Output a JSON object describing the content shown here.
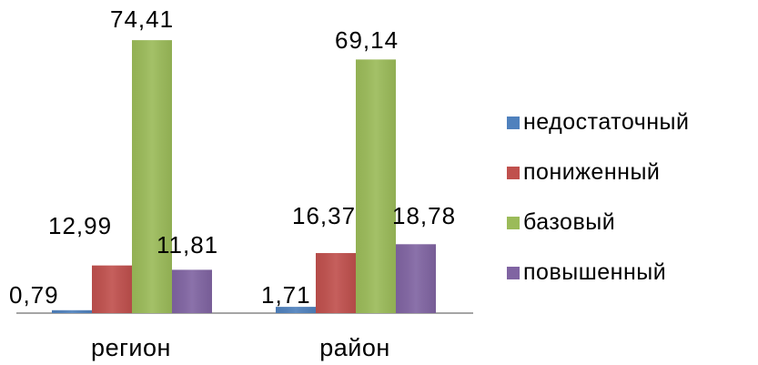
{
  "chart_data": {
    "type": "bar",
    "categories": [
      "регион",
      "район"
    ],
    "series": [
      {
        "name": "недостаточный",
        "values": [
          0.79,
          1.71
        ],
        "labels": [
          "0,79",
          "1,71"
        ],
        "color": "#4F81BD"
      },
      {
        "name": "пониженный",
        "values": [
          12.99,
          16.37
        ],
        "labels": [
          "12,99",
          "16,37"
        ],
        "color": "#C0504D"
      },
      {
        "name": "базовый",
        "values": [
          74.41,
          69.14
        ],
        "labels": [
          "74,41",
          "69,14"
        ],
        "color": "#9BBB59"
      },
      {
        "name": "повышенный",
        "values": [
          11.81,
          18.78
        ],
        "labels": [
          "11,81",
          "18,78"
        ],
        "color": "#8064A2"
      }
    ],
    "title": "",
    "xlabel": "",
    "ylabel": "",
    "legend_position": "right",
    "grid": false,
    "ylim": [
      0,
      80
    ]
  }
}
